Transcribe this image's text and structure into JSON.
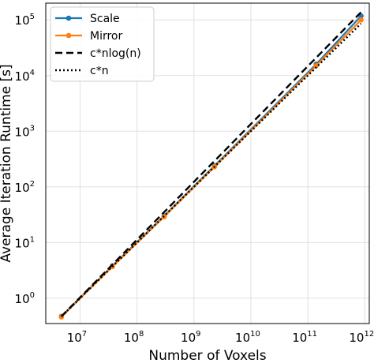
{
  "chart_data": {
    "type": "line",
    "title": "",
    "xlabel": "Number of Voxels",
    "ylabel": "Average Iteration Runtime [s]",
    "xscale": "log",
    "yscale": "log",
    "xlim": [
      2500000.0,
      1200000000000.0
    ],
    "ylim": [
      0.35,
      200000
    ],
    "grid": true,
    "legend_position": "top-left",
    "x_ticks": [
      {
        "base": "10",
        "exp": "7",
        "value": 10000000.0
      },
      {
        "base": "10",
        "exp": "8",
        "value": 100000000.0
      },
      {
        "base": "10",
        "exp": "9",
        "value": 1000000000.0
      },
      {
        "base": "10",
        "exp": "10",
        "value": 10000000000.0
      },
      {
        "base": "10",
        "exp": "11",
        "value": 100000000000.0
      },
      {
        "base": "10",
        "exp": "12",
        "value": 1000000000000.0
      }
    ],
    "y_ticks": [
      {
        "base": "10",
        "exp": "0",
        "value": 1
      },
      {
        "base": "10",
        "exp": "1",
        "value": 10
      },
      {
        "base": "10",
        "exp": "2",
        "value": 100
      },
      {
        "base": "10",
        "exp": "3",
        "value": 1000
      },
      {
        "base": "10",
        "exp": "4",
        "value": 10000
      },
      {
        "base": "10",
        "exp": "5",
        "value": 100000
      }
    ],
    "series": [
      {
        "name": "Scale",
        "color": "#1f77b4",
        "style": "solid-marker",
        "points": [
          [
            4700000.0,
            0.47
          ],
          [
            37000000.0,
            3.8
          ],
          [
            300000000.0,
            30
          ],
          [
            2300000000.0,
            240
          ],
          [
            140000000000.0,
            16000
          ],
          [
            860000000000.0,
            118000
          ]
        ]
      },
      {
        "name": "Mirror",
        "color": "#ff7f0e",
        "style": "solid-marker",
        "points": [
          [
            4700000.0,
            0.46
          ],
          [
            37000000.0,
            3.7
          ],
          [
            300000000.0,
            29
          ],
          [
            2300000000.0,
            230
          ],
          [
            140000000000.0,
            15000
          ],
          [
            860000000000.0,
            100000
          ]
        ]
      },
      {
        "name": "c*nlog(n)",
        "color": "#000000",
        "style": "dashed",
        "points": [
          [
            4700000.0,
            0.47
          ],
          [
            860000000000.0,
            138000
          ]
        ]
      },
      {
        "name": "c*n",
        "color": "#000000",
        "style": "dotted",
        "points": [
          [
            4700000.0,
            0.47
          ],
          [
            860000000000.0,
            86000
          ]
        ]
      }
    ]
  }
}
